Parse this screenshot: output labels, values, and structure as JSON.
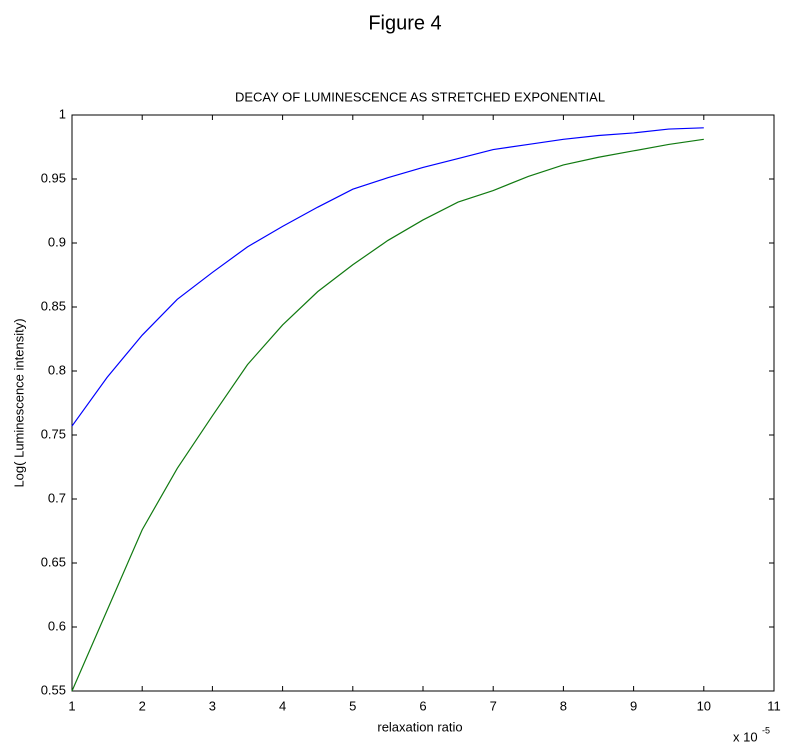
{
  "page_title": "Figure 4",
  "chart_data": {
    "type": "line",
    "title": "DECAY OF LUMINESCENCE AS STRETCHED EXPONENTIAL",
    "x_label": "relaxation ratio",
    "y_label": "Log( Luminescence intensity)",
    "x_multiplier": {
      "base": "x 10",
      "exponent": "-5"
    },
    "x": [
      1,
      1.5,
      2,
      2.5,
      3,
      3.5,
      4,
      4.5,
      5,
      5.5,
      6,
      6.5,
      7,
      7.5,
      8,
      8.5,
      9,
      9.5,
      10
    ],
    "series": [
      {
        "color": "#0000ff",
        "values": [
          0.757,
          0.795,
          0.828,
          0.856,
          0.877,
          0.897,
          0.913,
          0.928,
          0.942,
          0.951,
          0.959,
          0.966,
          0.973,
          0.977,
          0.981,
          0.984,
          0.986,
          0.989,
          0.99
        ]
      },
      {
        "color": "#117a11",
        "values": [
          0.55,
          0.613,
          0.676,
          0.724,
          0.765,
          0.805,
          0.836,
          0.862,
          0.883,
          0.902,
          0.918,
          0.932,
          0.941,
          0.952,
          0.961,
          0.967,
          0.972,
          0.977,
          0.981
        ]
      }
    ],
    "xlim": [
      1,
      11
    ],
    "xticks": [
      1,
      2,
      3,
      4,
      5,
      6,
      7,
      8,
      9,
      10,
      11
    ],
    "ylim": [
      0.55,
      1
    ],
    "yticks": [
      0.55,
      0.6,
      0.65,
      0.7,
      0.75,
      0.8,
      0.85,
      0.9,
      0.95,
      1
    ],
    "grid": false
  }
}
